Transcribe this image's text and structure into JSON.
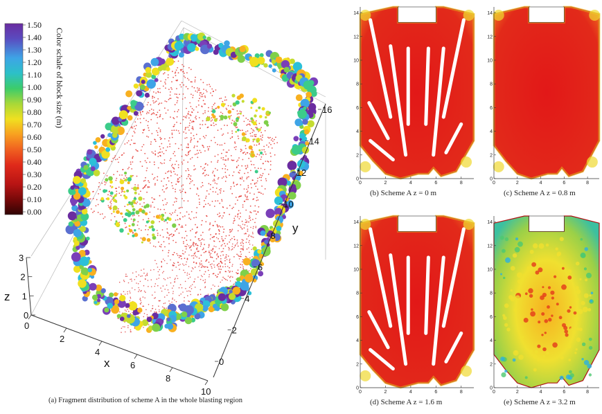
{
  "figure": {
    "caption_a": "(a) Fragment distribution of scheme A in the whole blasting region"
  },
  "colorbar": {
    "title": "Color schale of block size (m)",
    "ticks": [
      "1.50",
      "1.40",
      "1.30",
      "1.20",
      "1.10",
      "1.00",
      "0.90",
      "0.80",
      "0.70",
      "0.60",
      "0.50",
      "0.40",
      "0.30",
      "0.20",
      "0.10",
      "0.00"
    ],
    "colors": [
      "#6a2ca0",
      "#7a3fb8",
      "#5a6fd0",
      "#3ea4e6",
      "#2cc0d8",
      "#3ccc8a",
      "#7fd04a",
      "#c4dc30",
      "#f0e020",
      "#f8b020",
      "#f07020",
      "#e83020",
      "#d01818",
      "#a01010",
      "#600808",
      "#300404"
    ]
  },
  "panel_a": {
    "xlabel": "x",
    "ylabel": "y",
    "zlabel": "z",
    "x_ticks": [
      "0",
      "2",
      "4",
      "6",
      "8",
      "10"
    ],
    "y_ticks": [
      "0",
      "2",
      "4",
      "6",
      "8",
      "10",
      "12",
      "14",
      "16"
    ],
    "z_ticks": [
      "0",
      "1",
      "2",
      "3"
    ]
  },
  "panels": [
    {
      "id": "b",
      "caption": "(b) Scheme A    z = 0 m"
    },
    {
      "id": "c",
      "caption": "(c) Scheme A    z = 0.8 m"
    },
    {
      "id": "d",
      "caption": "(d) Scheme A    z = 1.6 m"
    },
    {
      "id": "e",
      "caption": "(e) Scheme A    z = 3.2 m"
    }
  ],
  "panel_axes": {
    "x_ticks": [
      "0",
      "2",
      "4",
      "6",
      "8"
    ],
    "y_ticks": [
      "0",
      "2",
      "4",
      "6",
      "8",
      "10",
      "12",
      "14"
    ]
  },
  "chart_data": [
    {
      "type": "scatter",
      "panel": "a",
      "xlabel": "x",
      "ylabel": "y",
      "zlabel": "z",
      "xlim": [
        0,
        10
      ],
      "ylim": [
        0,
        16
      ],
      "zlim": [
        0,
        3
      ],
      "color_scale": {
        "min": 0.0,
        "max": 1.5,
        "unit": "m"
      }
    },
    {
      "type": "heatmap",
      "panel": "b",
      "z": 0.0,
      "xlim": [
        0,
        9
      ],
      "ylim": [
        0,
        14.5
      ]
    },
    {
      "type": "heatmap",
      "panel": "c",
      "z": 0.8,
      "xlim": [
        0,
        9
      ],
      "ylim": [
        0,
        14.5
      ]
    },
    {
      "type": "heatmap",
      "panel": "d",
      "z": 1.6,
      "xlim": [
        0,
        9
      ],
      "ylim": [
        0,
        14.5
      ]
    },
    {
      "type": "heatmap",
      "panel": "e",
      "z": 3.2,
      "xlim": [
        0,
        9
      ],
      "ylim": [
        0,
        14.5
      ]
    }
  ]
}
